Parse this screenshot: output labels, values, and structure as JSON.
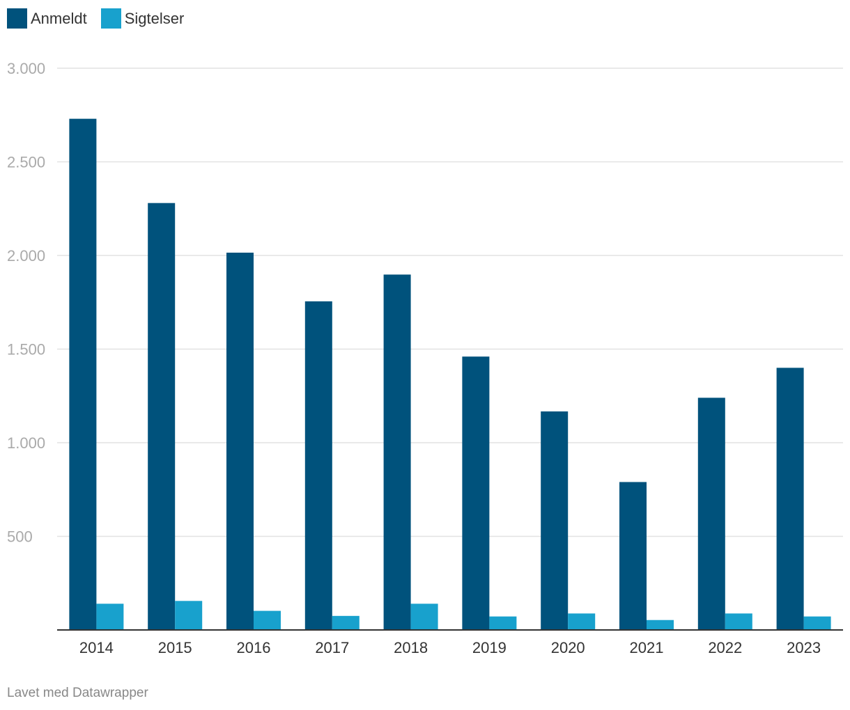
{
  "chart_data": {
    "type": "bar",
    "categories": [
      "2014",
      "2015",
      "2016",
      "2017",
      "2018",
      "2019",
      "2020",
      "2021",
      "2022",
      "2023"
    ],
    "series": [
      {
        "name": "Anmeldt",
        "color": "#00527c",
        "values": [
          2730,
          2280,
          2015,
          1755,
          1898,
          1460,
          1167,
          790,
          1240,
          1400
        ]
      },
      {
        "name": "Sigtelser",
        "color": "#18a1cd",
        "values": [
          140,
          155,
          102,
          75,
          140,
          72,
          88,
          53,
          88,
          72
        ]
      }
    ],
    "y_ticks": [
      500,
      1000,
      1500,
      2000,
      2500,
      3000
    ],
    "y_tick_labels": [
      "500",
      "1.000",
      "1.500",
      "2.000",
      "2.500",
      "3.000"
    ],
    "ylim": [
      0,
      3000
    ],
    "grid": true,
    "legend_position": "top-left"
  },
  "footer": "Lavet med Datawrapper"
}
